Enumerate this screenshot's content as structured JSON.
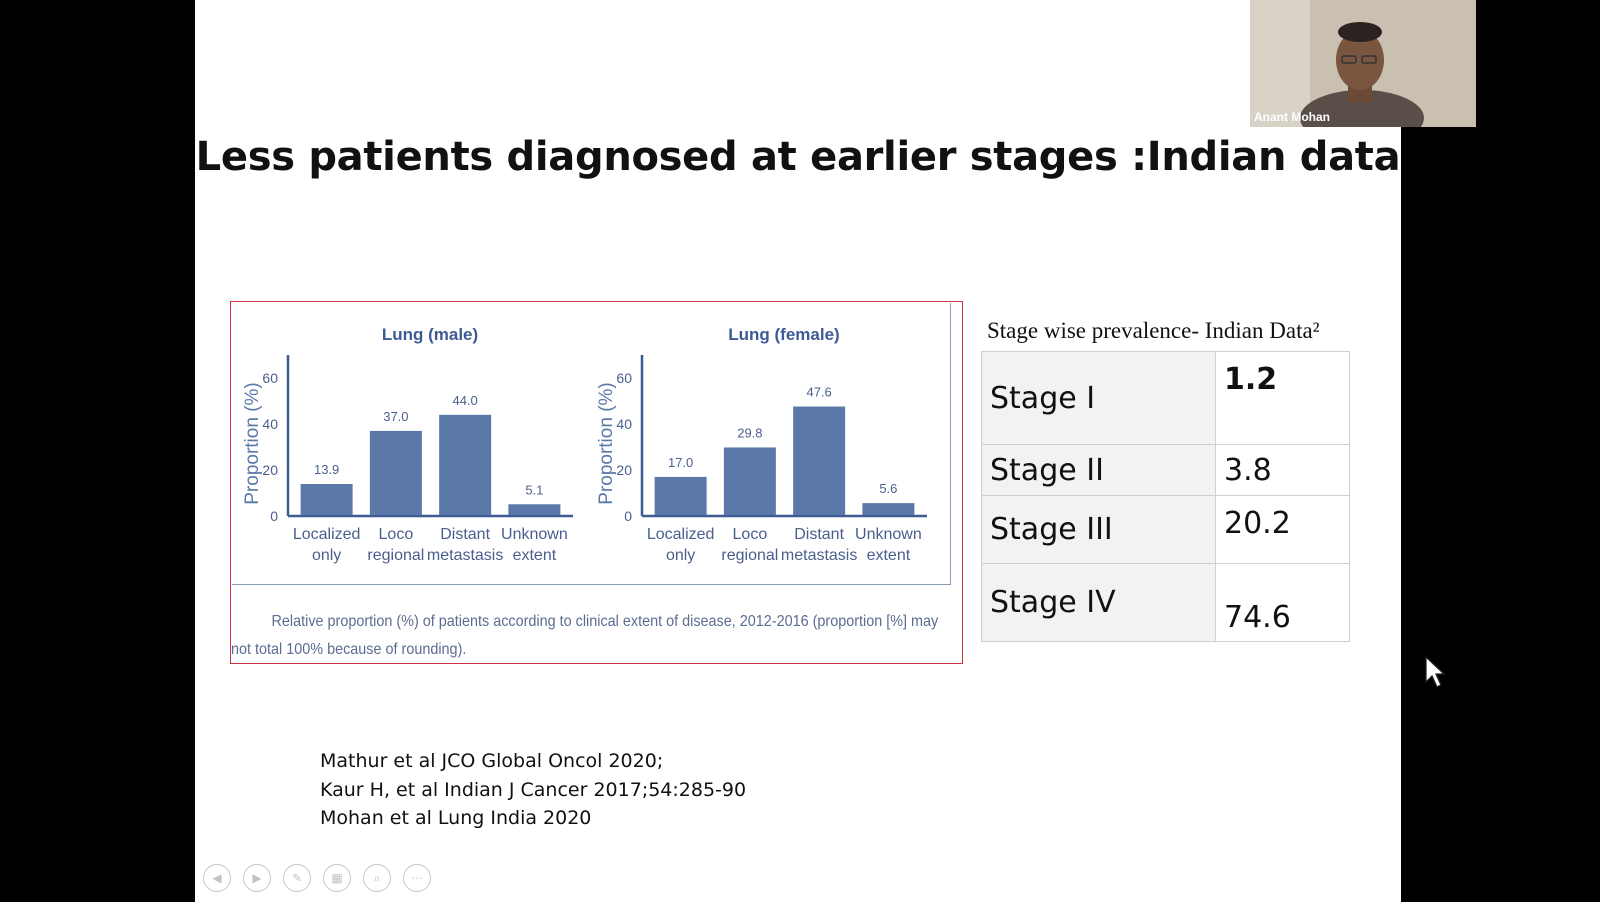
{
  "slide": {
    "title": "Less patients diagnosed at earlier stages :Indian data",
    "caption": "Relative proportion (%) of patients according to clinical extent of disease, 2012-2016 (proportion [%] may not total 100% because of rounding).",
    "references": [
      "Mathur et al JCO Global Oncol 2020;",
      "Kaur H, et al Indian J Cancer 2017;54:285-90",
      "Mohan et al Lung India 2020"
    ]
  },
  "chart_data": [
    {
      "type": "bar",
      "title": "Lung (male)",
      "ylabel": "Proportion (%)",
      "ylim": [
        0,
        70
      ],
      "yticks": [
        "0",
        "20",
        "40",
        "60"
      ],
      "categories": [
        [
          "Localized",
          "only"
        ],
        [
          "Loco",
          "regional"
        ],
        [
          "Distant",
          "metastasis"
        ],
        [
          "Unknown",
          "extent"
        ]
      ],
      "values": [
        13.9,
        37.0,
        44.0,
        5.1
      ],
      "value_labels": [
        "13.9",
        "37.0",
        "44.0",
        "5.1"
      ],
      "bar_color": "#5a78a8"
    },
    {
      "type": "bar",
      "title": "Lung (female)",
      "ylabel": "Proportion (%)",
      "ylim": [
        0,
        70
      ],
      "yticks": [
        "0",
        "20",
        "40",
        "60"
      ],
      "categories": [
        [
          "Localized",
          "only"
        ],
        [
          "Loco",
          "regional"
        ],
        [
          "Distant",
          "metastasis"
        ],
        [
          "Unknown",
          "extent"
        ]
      ],
      "values": [
        17.0,
        29.8,
        47.6,
        5.6
      ],
      "value_labels": [
        "17.0",
        "29.8",
        "47.6",
        "5.6"
      ],
      "bar_color": "#5a78a8"
    }
  ],
  "stage_table": {
    "heading": "Stage wise prevalence- Indian Data²",
    "rows": [
      {
        "stage": "Stage I",
        "value": "1.2"
      },
      {
        "stage": "Stage II",
        "value": "3.8"
      },
      {
        "stage": "Stage III",
        "value": "20.2"
      },
      {
        "stage": "Stage IV",
        "value": "74.6"
      }
    ]
  },
  "webcam": {
    "participant_name": "Anant Mohan"
  },
  "controls": [
    "previous-icon",
    "next-icon",
    "pen-icon",
    "slides-icon",
    "zoom-icon",
    "more-icon"
  ]
}
